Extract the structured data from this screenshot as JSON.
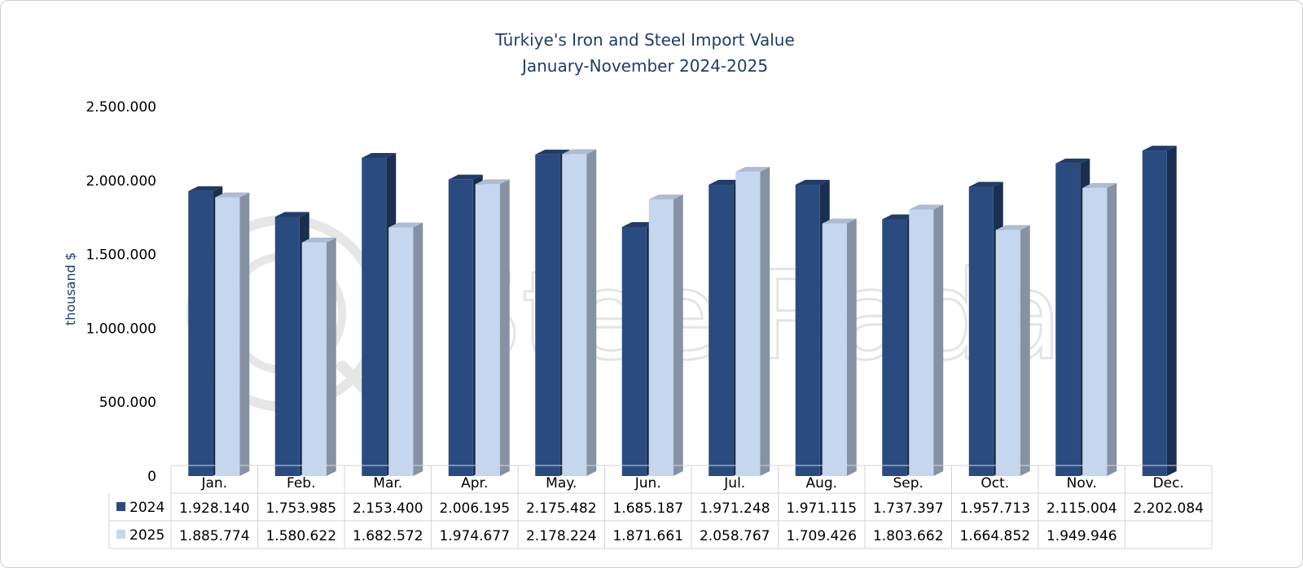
{
  "chart_data": {
    "type": "bar",
    "title": "Türkiye's Iron and Steel Import Value",
    "subtitle": "January-November 2024-2025",
    "ylabel": "thousand  $",
    "ylim": [
      0,
      2500000
    ],
    "yticks": [
      "0",
      "500.000",
      "1.000.000",
      "1.500.000",
      "2.000.000",
      "2.500.000"
    ],
    "ytick_values": [
      0,
      500000,
      1000000,
      1500000,
      2000000,
      2500000
    ],
    "categories": [
      "Jan.",
      "Feb.",
      "Mar.",
      "Apr.",
      "May.",
      "Jun.",
      "Jul.",
      "Aug.",
      "Sep.",
      "Oct.",
      "Nov.",
      "Dec."
    ],
    "series": [
      {
        "name": "2024",
        "color": "#2a4b80",
        "values": [
          1928140,
          1753985,
          2153400,
          2006195,
          2175482,
          1685187,
          1971248,
          1971115,
          1737397,
          1957713,
          2115004,
          2202084
        ],
        "labels": [
          "1.928.140",
          "1.753.985",
          "2.153.400",
          "2.006.195",
          "2.175.482",
          "1.685.187",
          "1.971.248",
          "1.971.115",
          "1.737.397",
          "1.957.713",
          "2.115.004",
          "2.202.084"
        ]
      },
      {
        "name": "2025",
        "color": "#c5d6ef",
        "values": [
          1885774,
          1580622,
          1682572,
          1974677,
          2178224,
          1871661,
          2058767,
          1709426,
          1803662,
          1664852,
          1949946,
          null
        ],
        "labels": [
          "1.885.774",
          "1.580.622",
          "1.682.572",
          "1.974.677",
          "2.178.224",
          "1.871.661",
          "2.058.767",
          "1.709.426",
          "1.803.662",
          "1.664.852",
          "1.949.946",
          ""
        ]
      }
    ],
    "legend": "data-table-left",
    "grid": false,
    "watermark": "SteelRadar"
  }
}
